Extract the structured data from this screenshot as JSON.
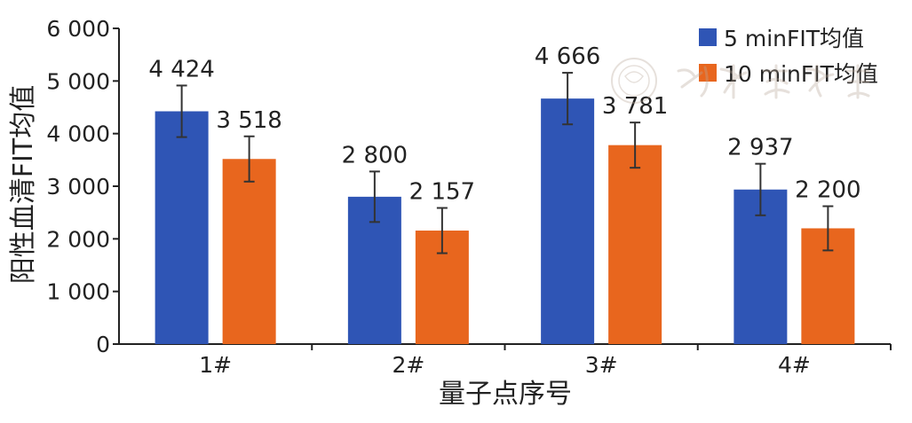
{
  "chart_data": {
    "type": "bar",
    "categories": [
      "1#",
      "2#",
      "3#",
      "4#"
    ],
    "series": [
      {
        "name": "5 minFIT均值",
        "color": "#2f55b5",
        "values": [
          4424,
          2800,
          4666,
          2937
        ],
        "labels": [
          "4 424",
          "2 800",
          "4 666",
          "2 937"
        ],
        "error": [
          490,
          480,
          490,
          490
        ]
      },
      {
        "name": "10 minFIT均值",
        "color": "#e8661e",
        "values": [
          3518,
          2157,
          3781,
          2200
        ],
        "labels": [
          "3 518",
          "2 157",
          "3 781",
          "2 200"
        ],
        "error": [
          430,
          430,
          430,
          420
        ]
      }
    ],
    "title": "",
    "xlabel": "量子点序号",
    "ylabel": "阳性血清FIT均值",
    "ylim": [
      0,
      6000
    ],
    "yticks": [
      0,
      1000,
      2000,
      3000,
      4000,
      5000,
      6000
    ],
    "ytick_labels": [
      "0",
      "1 000",
      "2 000",
      "3 000",
      "4 000",
      "5 000",
      "6 000"
    ],
    "grid": false,
    "legend_position": "top-right"
  }
}
